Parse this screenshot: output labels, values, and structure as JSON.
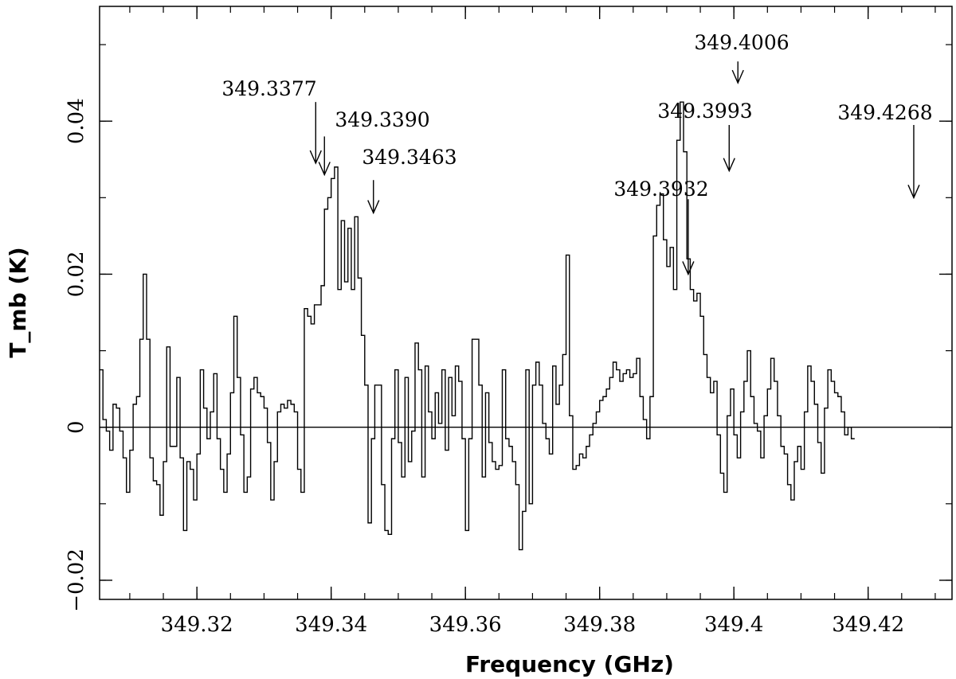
{
  "chart_data": {
    "type": "line",
    "style": "step",
    "title": "",
    "xlabel": "Frequency (GHz)",
    "ylabel": "T_mb (K)",
    "xlim": [
      349.3055,
      349.4325
    ],
    "ylim": [
      -0.0225,
      0.055
    ],
    "xticks": [
      {
        "value": 349.32,
        "label": "349.32"
      },
      {
        "value": 349.34,
        "label": "349.34"
      },
      {
        "value": 349.36,
        "label": "349.36"
      },
      {
        "value": 349.38,
        "label": "349.38"
      },
      {
        "value": 349.4,
        "label": "349.4"
      },
      {
        "value": 349.42,
        "label": "349.42"
      }
    ],
    "yticks": [
      {
        "value": -0.02,
        "label": "−0.02"
      },
      {
        "value": 0,
        "label": "0"
      },
      {
        "value": 0.02,
        "label": "0.02"
      },
      {
        "value": 0.04,
        "label": "0.04"
      }
    ],
    "x_minor_step": 0.005,
    "y_minor_step": 0.01,
    "zero_line": true,
    "grid": false,
    "spectrum": {
      "x_start": 349.3055,
      "x_step": 0.0005,
      "values": [
        0.0075,
        0.001,
        -0.0005,
        -0.003,
        0.003,
        0.0025,
        -0.0005,
        -0.004,
        -0.0085,
        -0.003,
        0.003,
        0.004,
        0.0115,
        0.02,
        0.0115,
        -0.004,
        -0.007,
        -0.0075,
        -0.0115,
        -0.0045,
        0.0105,
        -0.0025,
        -0.0025,
        0.0065,
        -0.004,
        -0.0135,
        -0.0045,
        -0.0055,
        -0.0095,
        -0.0035,
        0.0075,
        0.0025,
        -0.0015,
        0.002,
        0.007,
        -0.0015,
        -0.0055,
        -0.0085,
        -0.0035,
        0.0045,
        0.0145,
        0.0065,
        -0.001,
        -0.0085,
        -0.0065,
        0.005,
        0.0065,
        0.0045,
        0.004,
        0.0025,
        -0.002,
        -0.0095,
        -0.0045,
        0.002,
        0.003,
        0.0025,
        0.0035,
        0.003,
        0.002,
        -0.0055,
        -0.0085,
        0.0155,
        0.0145,
        0.0135,
        0.016,
        0.016,
        0.0185,
        0.0285,
        0.03,
        0.0325,
        0.034,
        0.018,
        0.027,
        0.019,
        0.026,
        0.018,
        0.0275,
        0.0195,
        0.012,
        0.0055,
        -0.0125,
        -0.0015,
        0.0055,
        0.0055,
        -0.0075,
        -0.0135,
        -0.014,
        -0.0015,
        0.0075,
        -0.002,
        -0.0065,
        0.0065,
        -0.0045,
        -0.0005,
        0.011,
        0.0075,
        -0.0065,
        0.008,
        0.002,
        -0.0015,
        0.0045,
        0.0005,
        0.0075,
        -0.003,
        0.0065,
        0.0015,
        0.008,
        0.006,
        -0.0015,
        -0.0135,
        -0.0015,
        0.0115,
        0.0115,
        0.0055,
        -0.0065,
        0.0045,
        -0.002,
        -0.0045,
        -0.0055,
        -0.005,
        0.0075,
        -0.0015,
        -0.0025,
        -0.0045,
        -0.0075,
        -0.016,
        -0.011,
        0.0075,
        -0.01,
        0.0055,
        0.0085,
        0.0055,
        0.0005,
        -0.0015,
        -0.0035,
        0.008,
        0.003,
        0.0055,
        0.0095,
        0.0225,
        0.0015,
        -0.0055,
        -0.005,
        -0.0035,
        -0.004,
        -0.0025,
        -0.001,
        0.0005,
        0.002,
        0.0035,
        0.004,
        0.005,
        0.0065,
        0.0085,
        0.0075,
        0.006,
        0.007,
        0.0075,
        0.0065,
        0.007,
        0.009,
        0.004,
        0.001,
        -0.0015,
        0.004,
        0.025,
        0.029,
        0.0305,
        0.0245,
        0.021,
        0.0235,
        0.018,
        0.0375,
        0.0425,
        0.036,
        0.022,
        0.018,
        0.0165,
        0.0175,
        0.0145,
        0.0095,
        0.0065,
        0.0045,
        0.006,
        -0.001,
        -0.006,
        -0.0085,
        0.0015,
        0.005,
        -0.001,
        -0.004,
        0.002,
        0.006,
        0.01,
        0.004,
        0.0005,
        -0.0005,
        -0.004,
        0.0015,
        0.005,
        0.009,
        0.006,
        0.0015,
        -0.0025,
        -0.0035,
        -0.0075,
        -0.0095,
        -0.0045,
        -0.0025,
        -0.0055,
        0.002,
        0.008,
        0.006,
        0.003,
        -0.002,
        -0.006,
        0.0025,
        0.0075,
        0.006,
        0.0045,
        0.004,
        0.002,
        -0.001,
        0.0,
        -0.0015
      ]
    },
    "annotations": [
      {
        "label": "349.3377",
        "x": 349.3377,
        "y_tip": 0.0345,
        "y_tail": 0.0425
      },
      {
        "label": "349.3390",
        "x": 349.339,
        "y_tip": 0.033,
        "y_tail": 0.038
      },
      {
        "label": "349.3463",
        "x": 349.3463,
        "y_tip": 0.028,
        "y_tail": 0.0323
      },
      {
        "label": "349.3932",
        "x": 349.3932,
        "y_tip": 0.02,
        "y_tail": 0.0298
      },
      {
        "label": "349.3993",
        "x": 349.3993,
        "y_tip": 0.0335,
        "y_tail": 0.0395
      },
      {
        "label": "349.4006",
        "x": 349.4006,
        "y_tip": 0.045,
        "y_tail": 0.0478
      },
      {
        "label": "349.4268",
        "x": 349.4268,
        "y_tip": 0.03,
        "y_tail": 0.0395
      }
    ]
  }
}
